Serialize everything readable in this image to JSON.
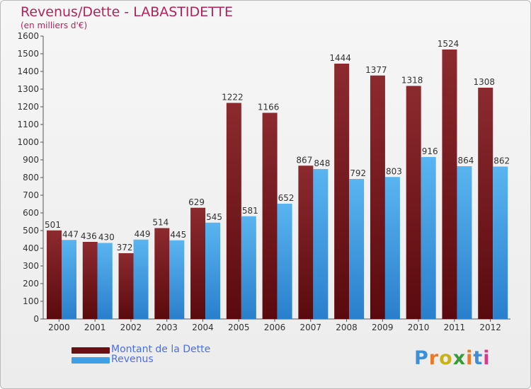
{
  "header": {
    "title": "Revenus/Dette - LABASTIDETTE",
    "subtitle": "(en milliers d'€)"
  },
  "chart_data": {
    "type": "bar",
    "title": "Revenus/Dette - LABASTIDETTE",
    "subtitle": "(en milliers d'€)",
    "categories": [
      "2000",
      "2001",
      "2002",
      "2003",
      "2004",
      "2005",
      "2006",
      "2007",
      "2008",
      "2009",
      "2010",
      "2011",
      "2012"
    ],
    "series": [
      {
        "name": "Montant de la Dette",
        "color": "#7a1419",
        "values": [
          501,
          436,
          372,
          514,
          629,
          1222,
          1166,
          867,
          1444,
          1377,
          1318,
          1524,
          1308
        ]
      },
      {
        "name": "Revenus",
        "color": "#3f9fe6",
        "values": [
          447,
          430,
          449,
          445,
          545,
          581,
          652,
          848,
          792,
          803,
          916,
          864,
          862
        ]
      }
    ],
    "ylim": [
      0,
      1600
    ],
    "yticks": [
      0,
      100,
      200,
      300,
      400,
      500,
      600,
      700,
      800,
      900,
      1000,
      1100,
      1200,
      1300,
      1400,
      1500,
      1600
    ],
    "grid": false,
    "legend": "bottom-left"
  },
  "legend": {
    "items": [
      {
        "label": "Montant de la Dette",
        "color": "#7a1419"
      },
      {
        "label": "Revenus",
        "color": "#3f9fe6"
      }
    ]
  },
  "logo": {
    "text": "Proxiti"
  }
}
